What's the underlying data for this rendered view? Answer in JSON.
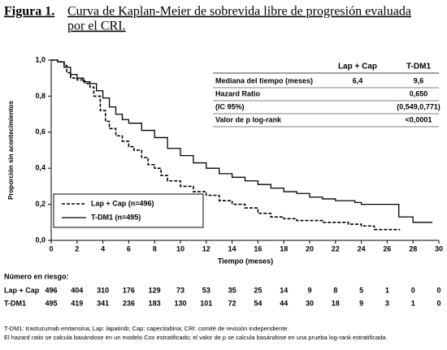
{
  "chart_data": {
    "type": "line",
    "title_label": "Figura 1.",
    "title_lines": [
      "Curva de Kaplan-Meier de sobrevida libre de progresión evaluada",
      "por el CRI."
    ],
    "xlabel": "Tiempo (meses)",
    "ylabel": "Proporción sin acontecimientos",
    "xlim": [
      0,
      30
    ],
    "ylim": [
      0,
      1
    ],
    "xticks": [
      0,
      2,
      4,
      6,
      8,
      10,
      12,
      14,
      16,
      18,
      20,
      22,
      24,
      26,
      28,
      30
    ],
    "yticks": [
      {
        "value": 0,
        "label": "0,0"
      },
      {
        "value": 0.2,
        "label": "0,2"
      },
      {
        "value": 0.4,
        "label": "0,4"
      },
      {
        "value": 0.6,
        "label": "0,6"
      },
      {
        "value": 0.8,
        "label": "0,8"
      },
      {
        "value": 1,
        "label": "1,0"
      }
    ],
    "step": true,
    "series": [
      {
        "name": "Lap + Cap (n=496)",
        "color": "#000000",
        "dash": true,
        "x": [
          0,
          0.5,
          1,
          1.2,
          1.5,
          2,
          2.6,
          3,
          3.3,
          3.8,
          4.2,
          4.5,
          5,
          5.5,
          6,
          6.4,
          7,
          7.5,
          8,
          8.5,
          9,
          10,
          11,
          12,
          13,
          14,
          15,
          16,
          17,
          18,
          19,
          21,
          23,
          24,
          25,
          27
        ],
        "values": [
          1,
          0.99,
          0.97,
          0.93,
          0.9,
          0.89,
          0.87,
          0.85,
          0.8,
          0.72,
          0.66,
          0.62,
          0.58,
          0.55,
          0.52,
          0.5,
          0.46,
          0.42,
          0.4,
          0.36,
          0.33,
          0.3,
          0.27,
          0.25,
          0.22,
          0.2,
          0.18,
          0.15,
          0.13,
          0.12,
          0.11,
          0.1,
          0.09,
          0.08,
          0.06,
          0.06
        ]
      },
      {
        "name": "T-DM1 (n=495)",
        "color": "#000000",
        "dash": false,
        "x": [
          0,
          0.5,
          1,
          1.5,
          2,
          2.5,
          3,
          3.5,
          4,
          4.5,
          5,
          5.5,
          6,
          7,
          8,
          9,
          10,
          11,
          12,
          13,
          14,
          15,
          16,
          17,
          18,
          19,
          20,
          21,
          22,
          23.5,
          24,
          26.9,
          28,
          29.5
        ],
        "values": [
          1,
          0.99,
          0.96,
          0.92,
          0.9,
          0.88,
          0.87,
          0.83,
          0.79,
          0.74,
          0.7,
          0.67,
          0.65,
          0.61,
          0.57,
          0.51,
          0.47,
          0.43,
          0.4,
          0.37,
          0.35,
          0.33,
          0.31,
          0.29,
          0.27,
          0.26,
          0.24,
          0.23,
          0.22,
          0.21,
          0.2,
          0.13,
          0.1,
          0.1
        ]
      }
    ],
    "legend": "lower-left",
    "stats_table": {
      "header": [
        "Lap + Cap",
        "T-DM1"
      ],
      "rows": [
        {
          "label": "Mediana del tiempo (meses)",
          "values": [
            "6,4",
            "9,6"
          ]
        },
        {
          "label": "Hazard Ratio",
          "values": [
            "0,650"
          ]
        },
        {
          "label": "(IC 95%)",
          "values": [
            "(0,549,0,771)"
          ]
        },
        {
          "label": "Valor de p log-rank",
          "values": [
            "<0,0001"
          ]
        }
      ]
    },
    "at_risk": {
      "title": "Número en riesgo:",
      "rows": [
        {
          "name": "Lap + Cap",
          "values": [
            496,
            404,
            310,
            176,
            129,
            73,
            53,
            35,
            25,
            14,
            9,
            8,
            5,
            1,
            0,
            0
          ]
        },
        {
          "name": "T-DM1",
          "values": [
            495,
            419,
            341,
            236,
            183,
            130,
            101,
            72,
            54,
            44,
            30,
            18,
            9,
            3,
            1,
            0
          ]
        }
      ]
    },
    "footnotes": [
      "T-DM1: trastuzumab emtansina; Lap: lapatinib; Cap: capecitabina; CRI: comité de revisión independiente.",
      "El hazard ratio se calcula basándose en un modelo Cox estratificado; el valor de p se calcula basándose en una prueba log-rank estratificada."
    ]
  }
}
